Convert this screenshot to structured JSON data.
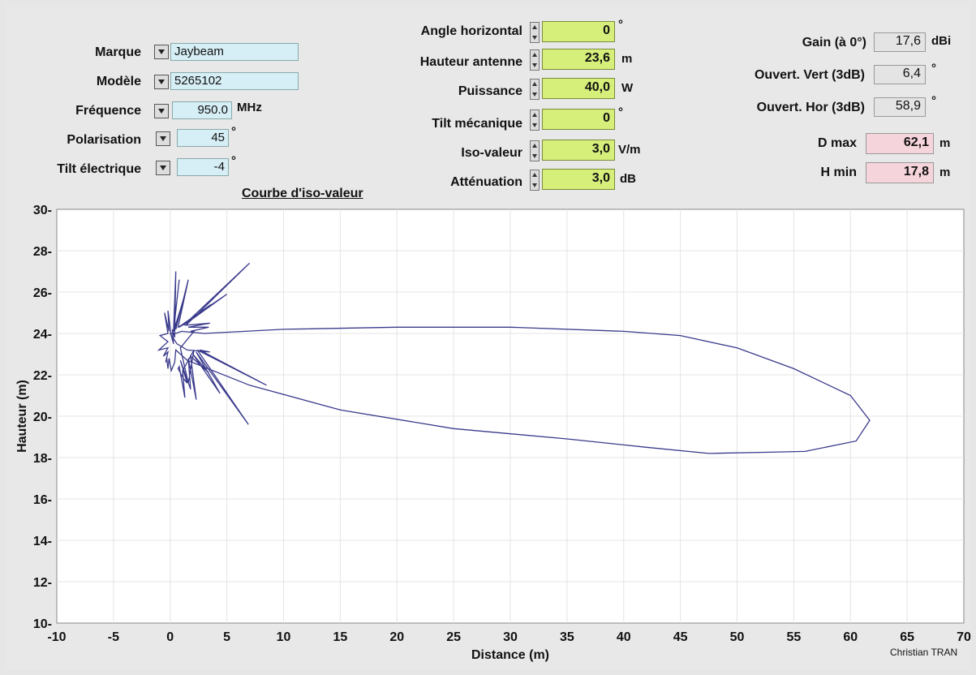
{
  "left": {
    "marque": {
      "label": "Marque",
      "value": "Jaybeam"
    },
    "modele": {
      "label": "Modèle",
      "value": "5265102"
    },
    "frequence": {
      "label": "Fréquence",
      "value": "950.0",
      "unit": "MHz"
    },
    "polarisation": {
      "label": "Polarisation",
      "value": "45",
      "unit": "°"
    },
    "tilt_electrique": {
      "label": "Tilt électrique",
      "value": "-4",
      "unit": "°"
    }
  },
  "middle": {
    "angle_horizontal": {
      "label": "Angle horizontal",
      "value": "0",
      "unit": "°"
    },
    "hauteur_antenne": {
      "label": "Hauteur antenne",
      "value": "23,6",
      "unit": "m"
    },
    "puissance": {
      "label": "Puissance",
      "value": "40,0",
      "unit": "W"
    },
    "tilt_mecanique": {
      "label": "Tilt mécanique",
      "value": "0",
      "unit": "°"
    },
    "iso_valeur": {
      "label": "Iso-valeur",
      "value": "3,0",
      "unit": "V/m"
    },
    "attenuation": {
      "label": "Atténuation",
      "value": "3,0",
      "unit": "dB"
    }
  },
  "right": {
    "gain": {
      "label": "Gain (à 0°)",
      "value": "17,6",
      "unit": "dBi"
    },
    "ouvert_vert": {
      "label": "Ouvert. Vert (3dB)",
      "value": "6,4",
      "unit": "°"
    },
    "ouvert_hor": {
      "label": "Ouvert. Hor (3dB)",
      "value": "58,9",
      "unit": "°"
    },
    "dmax": {
      "label": "D max",
      "value": "62,1",
      "unit": "m"
    },
    "hmin": {
      "label": "H min",
      "value": "17,8",
      "unit": "m"
    }
  },
  "credit": "Christian TRAN",
  "colors": {
    "curve": "#3a3a8c",
    "plot_bg": "#ffffff",
    "grid": "#e4e4e4"
  },
  "chart_data": {
    "type": "line",
    "title": "Courbe d'iso-valeur",
    "xlabel": "Distance (m)",
    "ylabel": "Hauteur (m)",
    "xlim": [
      -10,
      70
    ],
    "ylim": [
      10,
      30
    ],
    "xticks": [
      "-10",
      "-5",
      "0",
      "5",
      "10",
      "15",
      "20",
      "25",
      "30",
      "35",
      "40",
      "45",
      "50",
      "55",
      "60",
      "65",
      "70"
    ],
    "yticks": [
      "10",
      "12",
      "14",
      "16",
      "18",
      "20",
      "22",
      "24",
      "26",
      "28",
      "30"
    ],
    "grid": true,
    "series": [
      {
        "x": [
          0,
          0.5,
          1,
          3,
          10,
          20,
          30,
          40,
          45,
          50,
          55,
          60,
          61.7,
          60.5,
          56,
          52,
          47.5,
          42,
          35,
          25,
          15,
          7,
          1.5,
          0.5,
          0.4,
          0.1,
          -0.1,
          -0.2,
          -0.3,
          -0.4,
          -0.2,
          -0.6,
          -0.2,
          -1,
          -0.2,
          -0.9,
          -0.2,
          -0.5,
          -0.1,
          -0.2,
          0.1,
          0.3,
          0.2,
          0.4,
          0.5,
          0.3,
          0.8,
          0.3,
          1.1,
          0.4,
          1.3,
          0.5,
          1.6,
          0.7,
          2.2,
          0.8,
          3.6,
          1,
          5,
          1.2,
          7,
          1.4,
          3.5,
          1.6,
          3.4,
          1.8,
          2.1,
          0.9,
          1.6,
          2.1,
          1.1,
          1.3,
          0.8,
          0.7,
          1.2,
          1.5,
          0.9,
          1.8,
          1.6,
          2.3,
          1.8,
          3.4,
          2,
          4.4,
          2.3,
          6.9,
          2.4,
          8.5,
          2.6,
          3.5,
          1.5,
          0.6,
          0
        ],
        "y": [
          24,
          24,
          24.1,
          24,
          24.2,
          24.3,
          24.3,
          24.1,
          23.9,
          23.3,
          22.3,
          21,
          19.8,
          18.8,
          18.3,
          18.25,
          18.2,
          18.5,
          18.9,
          19.4,
          20.3,
          21.5,
          22.7,
          23.2,
          22.6,
          22.2,
          22.8,
          22.3,
          22.8,
          22.6,
          23.1,
          22.9,
          23.3,
          23.2,
          23.6,
          23.9,
          24,
          25,
          24.1,
          25.1,
          23.9,
          23.5,
          24.2,
          23.8,
          27,
          24.1,
          26.6,
          24.1,
          25.5,
          24.2,
          25.9,
          24.2,
          26.6,
          24.3,
          24.8,
          24.3,
          25.4,
          24.4,
          25.9,
          24.4,
          27.4,
          24.4,
          24.5,
          24.3,
          24.3,
          24.1,
          24.1,
          23.3,
          21.6,
          23.2,
          22.2,
          20.9,
          22.4,
          22.3,
          21.8,
          21.6,
          22.7,
          21.3,
          22.8,
          20.8,
          22.9,
          22.1,
          23,
          21.1,
          23.1,
          19.6,
          23.2,
          21.5,
          23.2,
          23.1,
          23.2,
          23.5,
          24
        ]
      }
    ]
  }
}
